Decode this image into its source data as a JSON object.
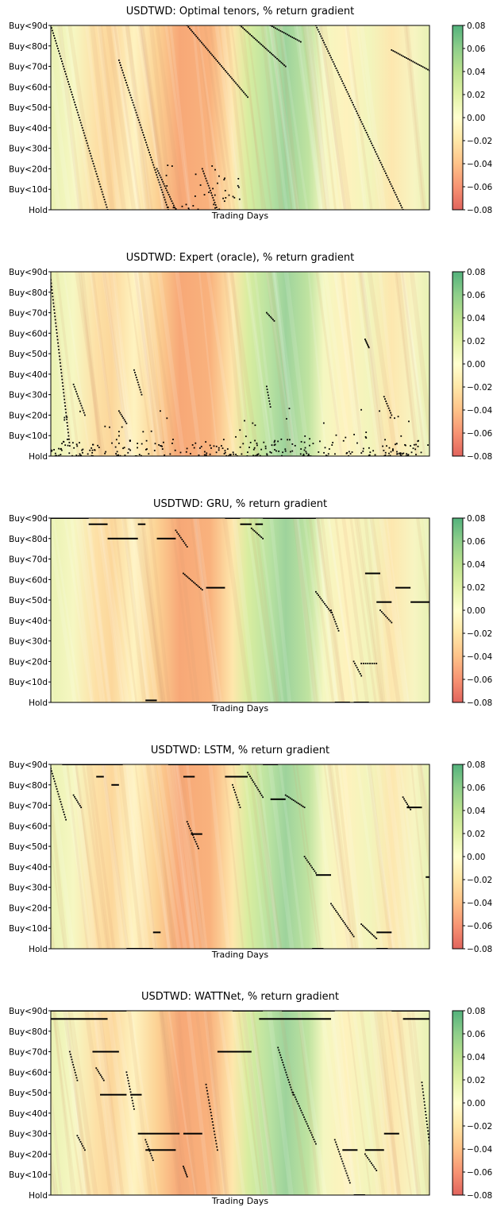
{
  "chart_data": [
    {
      "type": "heatmap",
      "title": "USDTWD: Optimal tenors, % return gradient",
      "xlabel": "Trading Days",
      "ylabel": "",
      "yticks": [
        "Hold",
        "Buy<10d",
        "Buy<20d",
        "Buy<30d",
        "Buy<40d",
        "Buy<50d",
        "Buy<60d",
        "Buy<70d",
        "Buy<80d",
        "Buy<90d"
      ],
      "ylim": [
        0,
        90
      ],
      "colorbar": {
        "min": -0.08,
        "max": 0.08,
        "ticks": [
          "0.08",
          "0.06",
          "0.04",
          "0.02",
          "0.00",
          "−0.02",
          "−0.04",
          "−0.06",
          "−0.08"
        ],
        "colormap": "RdYlGn",
        "position": "right"
      },
      "markers": {
        "lines": [
          {
            "x0": 0.0,
            "x1": 0.15,
            "y0": 90,
            "y1": 0
          },
          {
            "x0": 0.18,
            "x1": 0.31,
            "y0": 73,
            "y1": 0
          },
          {
            "x0": 0.36,
            "x1": 0.52,
            "y0": 90,
            "y1": 55
          },
          {
            "x0": 0.5,
            "x1": 0.62,
            "y0": 90,
            "y1": 70
          },
          {
            "x0": 0.58,
            "x1": 0.66,
            "y0": 90,
            "y1": 82
          },
          {
            "x0": 0.7,
            "x1": 0.93,
            "y0": 90,
            "y1": 0
          },
          {
            "x0": 0.9,
            "x1": 1.0,
            "y0": 78,
            "y1": 68
          },
          {
            "x0": 0.28,
            "x1": 0.33,
            "y0": 20,
            "y1": 0
          },
          {
            "x0": 0.4,
            "x1": 0.44,
            "y0": 20,
            "y1": 0
          }
        ],
        "clusters": [
          {
            "x0": 0.3,
            "x1": 0.5,
            "y0": 0,
            "y1": 22,
            "n": 40
          }
        ]
      }
    },
    {
      "type": "heatmap",
      "title": "USDTWD:  Expert (oracle), % return gradient",
      "xlabel": "",
      "ylabel": "",
      "yticks": [
        "Hold",
        "Buy<10d",
        "Buy<20d",
        "Buy<30d",
        "Buy<40d",
        "Buy<50d",
        "Buy<60d",
        "Buy<70d",
        "Buy<80d",
        "Buy<90d"
      ],
      "ylim": [
        0,
        90
      ],
      "colorbar": {
        "min": -0.08,
        "max": 0.08,
        "ticks": [
          "0.08",
          "0.06",
          "0.04",
          "0.02",
          "0.00",
          "−0.02",
          "−0.04",
          "−0.06",
          "−0.08"
        ],
        "colormap": "RdYlGn",
        "position": "right"
      },
      "markers": {
        "clusters": [
          {
            "x0": 0.0,
            "x1": 1.0,
            "y0": 0,
            "y1": 8,
            "n": 260
          },
          {
            "x0": 0.0,
            "x1": 1.0,
            "y0": 8,
            "y1": 24,
            "n": 45
          }
        ],
        "lines": [
          {
            "x0": 0.0,
            "x1": 0.05,
            "y0": 86,
            "y1": 5
          },
          {
            "x0": 0.06,
            "x1": 0.09,
            "y0": 35,
            "y1": 20
          },
          {
            "x0": 0.22,
            "x1": 0.24,
            "y0": 42,
            "y1": 30
          },
          {
            "x0": 0.18,
            "x1": 0.2,
            "y0": 22,
            "y1": 16
          },
          {
            "x0": 0.57,
            "x1": 0.59,
            "y0": 70,
            "y1": 66
          },
          {
            "x0": 0.57,
            "x1": 0.58,
            "y0": 34,
            "y1": 24
          },
          {
            "x0": 0.83,
            "x1": 0.84,
            "y0": 57,
            "y1": 53
          },
          {
            "x0": 0.88,
            "x1": 0.9,
            "y0": 29,
            "y1": 20
          }
        ]
      }
    },
    {
      "type": "heatmap",
      "title": "USDTWD: GRU, % return gradient",
      "xlabel": "Trading Days",
      "ylabel": "",
      "yticks": [
        "Hold",
        "Buy<10d",
        "Buy<20d",
        "Buy<30d",
        "Buy<40d",
        "Buy<50d",
        "Buy<60d",
        "Buy<70d",
        "Buy<80d",
        "Buy<90d"
      ],
      "ylim": [
        0,
        90
      ],
      "colorbar": {
        "min": -0.08,
        "max": 0.08,
        "ticks": [
          "0.08",
          "0.06",
          "0.04",
          "0.02",
          "0.00",
          "−0.02",
          "−0.04",
          "−0.06",
          "−0.08"
        ],
        "colormap": "RdYlGn",
        "position": "right"
      },
      "markers": {
        "segments": [
          {
            "x0": 0.0,
            "x1": 0.1,
            "y": 90
          },
          {
            "x0": 0.1,
            "x1": 0.15,
            "y": 87
          },
          {
            "x0": 0.15,
            "x1": 0.23,
            "y": 80
          },
          {
            "x0": 0.23,
            "x1": 0.25,
            "y": 87
          },
          {
            "x0": 0.25,
            "x1": 0.28,
            "y": 1
          },
          {
            "x0": 0.28,
            "x1": 0.33,
            "y": 80
          },
          {
            "x0": 0.41,
            "x1": 0.46,
            "y": 56
          },
          {
            "x0": 0.46,
            "x1": 0.5,
            "y": 90
          },
          {
            "x0": 0.5,
            "x1": 0.53,
            "y": 87
          },
          {
            "x0": 0.54,
            "x1": 0.56,
            "y": 87
          },
          {
            "x0": 0.56,
            "x1": 0.7,
            "y": 90
          },
          {
            "x0": 0.75,
            "x1": 0.79,
            "y": 0
          },
          {
            "x0": 0.8,
            "x1": 0.84,
            "y": 0
          },
          {
            "x0": 0.83,
            "x1": 0.87,
            "y": 63
          },
          {
            "x0": 0.86,
            "x1": 0.9,
            "y": 49
          },
          {
            "x0": 0.91,
            "x1": 0.95,
            "y": 56
          },
          {
            "x0": 0.95,
            "x1": 1.0,
            "y": 49
          }
        ],
        "lines": [
          {
            "x0": 0.33,
            "x1": 0.36,
            "y0": 84,
            "y1": 76
          },
          {
            "x0": 0.35,
            "x1": 0.4,
            "y0": 63,
            "y1": 55
          },
          {
            "x0": 0.53,
            "x1": 0.56,
            "y0": 85,
            "y1": 80
          },
          {
            "x0": 0.7,
            "x1": 0.74,
            "y0": 54,
            "y1": 44
          },
          {
            "x0": 0.74,
            "x1": 0.76,
            "y0": 45,
            "y1": 35
          },
          {
            "x0": 0.8,
            "x1": 0.82,
            "y0": 20,
            "y1": 13
          },
          {
            "x0": 0.87,
            "x1": 0.9,
            "y0": 45,
            "y1": 39
          },
          {
            "x0": 0.82,
            "x1": 0.86,
            "y0": 19,
            "y1": 19
          }
        ]
      }
    },
    {
      "type": "heatmap",
      "title": "USDTWD: LSTM, % return gradient",
      "xlabel": "Trading Days",
      "ylabel": "",
      "yticks": [
        "Hold",
        "Buy<10d",
        "Buy<20d",
        "Buy<30d",
        "Buy<40d",
        "Buy<50d",
        "Buy<60d",
        "Buy<70d",
        "Buy<80d",
        "Buy<90d"
      ],
      "ylim": [
        0,
        90
      ],
      "colorbar": {
        "min": -0.08,
        "max": 0.08,
        "ticks": [
          "0.08",
          "0.06",
          "0.04",
          "0.02",
          "0.00",
          "−0.02",
          "−0.04",
          "−0.06",
          "−0.08"
        ],
        "colormap": "RdYlGn",
        "position": "right"
      },
      "markers": {
        "segments": [
          {
            "x0": 0.03,
            "x1": 0.19,
            "y": 90
          },
          {
            "x0": 0.12,
            "x1": 0.14,
            "y": 84
          },
          {
            "x0": 0.16,
            "x1": 0.18,
            "y": 80
          },
          {
            "x0": 0.2,
            "x1": 0.27,
            "y": 0
          },
          {
            "x0": 0.27,
            "x1": 0.29,
            "y": 8
          },
          {
            "x0": 0.31,
            "x1": 0.5,
            "y": 90
          },
          {
            "x0": 0.35,
            "x1": 0.38,
            "y": 84
          },
          {
            "x0": 0.37,
            "x1": 0.4,
            "y": 56
          },
          {
            "x0": 0.46,
            "x1": 0.52,
            "y": 84
          },
          {
            "x0": 0.56,
            "x1": 0.6,
            "y": 90
          },
          {
            "x0": 0.58,
            "x1": 0.62,
            "y": 73
          },
          {
            "x0": 0.7,
            "x1": 0.74,
            "y": 36
          },
          {
            "x0": 0.86,
            "x1": 0.9,
            "y": 8
          },
          {
            "x0": 0.94,
            "x1": 0.98,
            "y": 69
          },
          {
            "x0": 0.86,
            "x1": 0.89,
            "y": 0
          },
          {
            "x0": 0.69,
            "x1": 0.72,
            "y": 0
          },
          {
            "x0": 0.99,
            "x1": 1.0,
            "y": 35
          }
        ],
        "lines": [
          {
            "x0": 0.0,
            "x1": 0.04,
            "y0": 88,
            "y1": 63
          },
          {
            "x0": 0.06,
            "x1": 0.08,
            "y0": 75,
            "y1": 69
          },
          {
            "x0": 0.36,
            "x1": 0.39,
            "y0": 62,
            "y1": 49
          },
          {
            "x0": 0.48,
            "x1": 0.5,
            "y0": 80,
            "y1": 69
          },
          {
            "x0": 0.52,
            "x1": 0.56,
            "y0": 86,
            "y1": 74
          },
          {
            "x0": 0.62,
            "x1": 0.67,
            "y0": 75,
            "y1": 69
          },
          {
            "x0": 0.67,
            "x1": 0.7,
            "y0": 45,
            "y1": 37
          },
          {
            "x0": 0.74,
            "x1": 0.8,
            "y0": 22,
            "y1": 6
          },
          {
            "x0": 0.82,
            "x1": 0.86,
            "y0": 12,
            "y1": 5
          },
          {
            "x0": 0.93,
            "x1": 0.95,
            "y0": 74,
            "y1": 68
          }
        ]
      }
    },
    {
      "type": "heatmap",
      "title": "USDTWD: WATTNet, % return gradient",
      "xlabel": "Trading Days",
      "ylabel": "",
      "yticks": [
        "Hold",
        "Buy<10d",
        "Buy<20d",
        "Buy<30d",
        "Buy<40d",
        "Buy<50d",
        "Buy<60d",
        "Buy<70d",
        "Buy<80d",
        "Buy<90d"
      ],
      "ylim": [
        0,
        90
      ],
      "colorbar": {
        "min": -0.08,
        "max": 0.08,
        "ticks": [
          "0.08",
          "0.06",
          "0.04",
          "0.02",
          "0.00",
          "−0.02",
          "−0.04",
          "−0.06",
          "−0.08"
        ],
        "colormap": "RdYlGn",
        "position": "right"
      },
      "markers": {
        "segments": [
          {
            "x0": 0.0,
            "x1": 0.2,
            "y": 90
          },
          {
            "x0": 0.0,
            "x1": 0.15,
            "y": 86
          },
          {
            "x0": 0.11,
            "x1": 0.18,
            "y": 70
          },
          {
            "x0": 0.13,
            "x1": 0.2,
            "y": 49
          },
          {
            "x0": 0.23,
            "x1": 0.34,
            "y": 30
          },
          {
            "x0": 0.25,
            "x1": 0.33,
            "y": 22
          },
          {
            "x0": 0.21,
            "x1": 0.24,
            "y": 49
          },
          {
            "x0": 0.44,
            "x1": 0.53,
            "y": 70
          },
          {
            "x0": 0.48,
            "x1": 0.56,
            "y": 90
          },
          {
            "x0": 0.55,
            "x1": 0.74,
            "y": 86
          },
          {
            "x0": 0.61,
            "x1": 0.75,
            "y": 90
          },
          {
            "x0": 0.77,
            "x1": 0.81,
            "y": 22
          },
          {
            "x0": 0.8,
            "x1": 0.83,
            "y": 0
          },
          {
            "x0": 0.88,
            "x1": 0.92,
            "y": 30
          },
          {
            "x0": 0.9,
            "x1": 1.0,
            "y": 90
          },
          {
            "x0": 0.93,
            "x1": 1.0,
            "y": 86
          },
          {
            "x0": 0.83,
            "x1": 0.88,
            "y": 22
          },
          {
            "x0": 0.35,
            "x1": 0.4,
            "y": 30
          }
        ],
        "lines": [
          {
            "x0": 0.05,
            "x1": 0.07,
            "y0": 70,
            "y1": 56
          },
          {
            "x0": 0.07,
            "x1": 0.09,
            "y0": 29,
            "y1": 22
          },
          {
            "x0": 0.12,
            "x1": 0.14,
            "y0": 62,
            "y1": 56
          },
          {
            "x0": 0.2,
            "x1": 0.22,
            "y0": 60,
            "y1": 42
          },
          {
            "x0": 0.25,
            "x1": 0.27,
            "y0": 27,
            "y1": 17
          },
          {
            "x0": 0.35,
            "x1": 0.36,
            "y0": 14,
            "y1": 9
          },
          {
            "x0": 0.41,
            "x1": 0.44,
            "y0": 54,
            "y1": 22
          },
          {
            "x0": 0.6,
            "x1": 0.64,
            "y0": 72,
            "y1": 49
          },
          {
            "x0": 0.64,
            "x1": 0.7,
            "y0": 50,
            "y1": 25
          },
          {
            "x0": 0.75,
            "x1": 0.79,
            "y0": 27,
            "y1": 6
          },
          {
            "x0": 0.83,
            "x1": 0.86,
            "y0": 20,
            "y1": 12
          },
          {
            "x0": 0.98,
            "x1": 1.0,
            "y0": 55,
            "y1": 25
          }
        ]
      }
    }
  ]
}
